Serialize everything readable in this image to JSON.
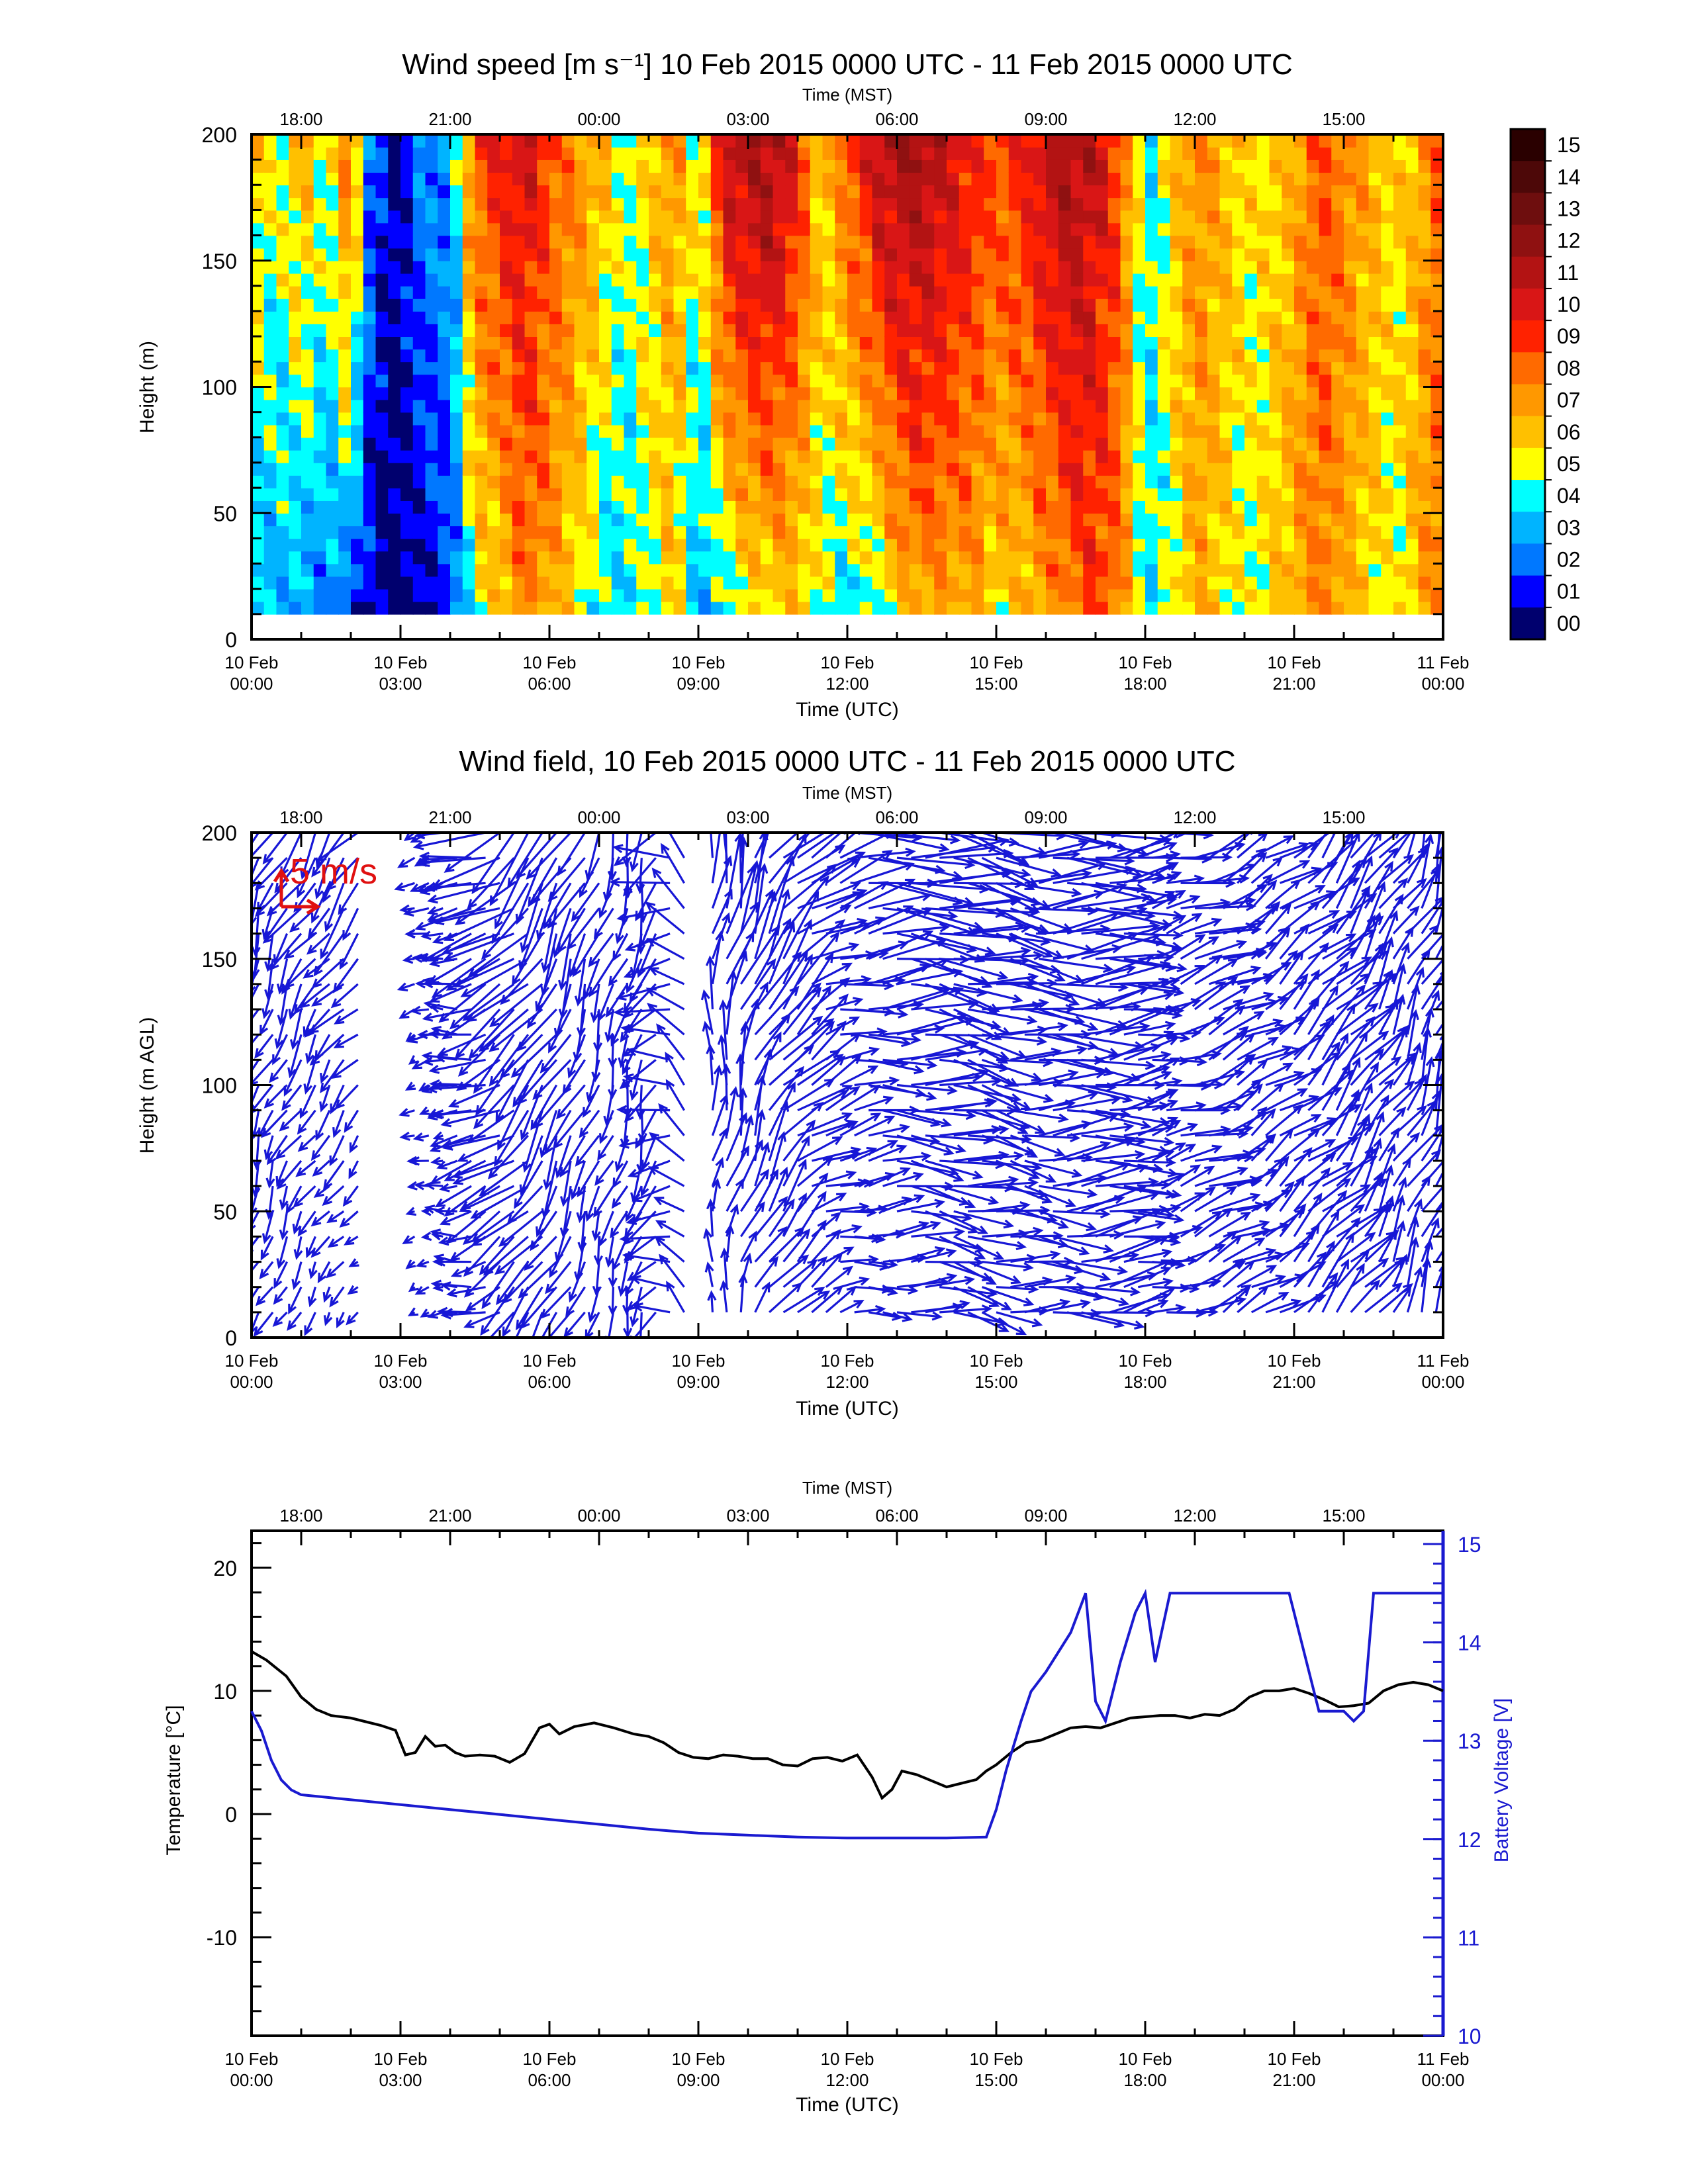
{
  "figure": {
    "colors": {
      "wind_arrows": "#1717d6",
      "scale_arrow": "#e01010",
      "temperature_line": "#000000",
      "voltage_line": "#1a1ad0",
      "voltage_axis": "#1a1ad0"
    }
  },
  "chart_data": [
    {
      "type": "heatmap",
      "title": "Wind speed [m s⁻¹] 10 Feb 2015 0000 UTC - 11 Feb 2015 0000 UTC",
      "xlabel": "Time (UTC)",
      "x2label": "Time (MST)",
      "ylabel": "Height (m)",
      "xlim_hours_utc": [
        0,
        24
      ],
      "ylim": [
        0,
        200
      ],
      "yticks": [
        "0",
        "50",
        "100",
        "150",
        "200"
      ],
      "xticks_utc": [
        {
          "day": "10 Feb",
          "time": "00:00"
        },
        {
          "day": "10 Feb",
          "time": "03:00"
        },
        {
          "day": "10 Feb",
          "time": "06:00"
        },
        {
          "day": "10 Feb",
          "time": "09:00"
        },
        {
          "day": "10 Feb",
          "time": "12:00"
        },
        {
          "day": "10 Feb",
          "time": "15:00"
        },
        {
          "day": "10 Feb",
          "time": "18:00"
        },
        {
          "day": "10 Feb",
          "time": "21:00"
        },
        {
          "day": "11 Feb",
          "time": "00:00"
        }
      ],
      "xticks_mst": [
        "18:00",
        "21:00",
        "00:00",
        "03:00",
        "06:00",
        "09:00",
        "12:00",
        "15:00"
      ],
      "colorbar": {
        "labels": [
          "15",
          "14",
          "13",
          "12",
          "11",
          "10",
          "09",
          "08",
          "07",
          "06",
          "05",
          "04",
          "03",
          "02",
          "01",
          "00"
        ],
        "colors": [
          "#2a0000",
          "#4d0808",
          "#6e0e0e",
          "#8f1111",
          "#b31313",
          "#d91616",
          "#ff2200",
          "#ff6a00",
          "#ff9800",
          "#ffc000",
          "#ffff00",
          "#00ffff",
          "#00b4ff",
          "#0078ff",
          "#0000ff",
          "#00006e"
        ]
      },
      "data_height_range_m": [
        10,
        200
      ],
      "wind_speed_profile": {
        "hours_utc": [
          0,
          0.5,
          1.0,
          1.5,
          2.0,
          2.3,
          2.7,
          3.0,
          3.5,
          4.0,
          4.5,
          5.0,
          5.5,
          6.0,
          6.5,
          7.0,
          7.5,
          8.0,
          8.5,
          9.0,
          9.5,
          10.0,
          10.5,
          11.0,
          11.5,
          12.0,
          12.5,
          13.0,
          13.5,
          14.0,
          14.5,
          15.0,
          15.5,
          16.0,
          16.5,
          17.0,
          17.5,
          18.0,
          18.5,
          19.0,
          19.5,
          20.0,
          20.5,
          21.0,
          21.5,
          22.0,
          22.5,
          23.0,
          23.5,
          24.0
        ],
        "speed_low_ms": [
          3,
          3.5,
          3,
          2.5,
          2,
          1,
          0.5,
          0.5,
          1,
          1.5,
          5,
          6,
          8,
          7,
          6,
          4,
          4,
          5,
          6,
          3,
          4,
          5,
          6,
          6,
          5,
          4,
          4,
          6,
          7,
          7,
          7,
          6,
          6,
          7,
          8,
          9,
          8,
          4,
          5,
          7,
          6,
          5,
          6,
          7,
          8,
          7,
          6,
          5,
          7,
          8
        ],
        "speed_high_ms": [
          7,
          5,
          7,
          5,
          9,
          3,
          1,
          1,
          3,
          3,
          9,
          10,
          11,
          9,
          8,
          7,
          5,
          6,
          8,
          5,
          11,
          12,
          12,
          10,
          6,
          9,
          11,
          12,
          12,
          11,
          10,
          9,
          10,
          11,
          12,
          11,
          9,
          4,
          6,
          8,
          7,
          6,
          6,
          7,
          9,
          8,
          7,
          6,
          7,
          9
        ]
      }
    },
    {
      "type": "quiver",
      "title": "Wind field, 10 Feb 2015 0000 UTC - 11 Feb 2015 0000 UTC",
      "xlabel": "Time (UTC)",
      "x2label": "Time (MST)",
      "ylabel": "Height (m AGL)",
      "xlim_hours_utc": [
        0,
        24
      ],
      "ylim": [
        0,
        200
      ],
      "yticks": [
        "0",
        "50",
        "100",
        "150",
        "200"
      ],
      "scale_label": "5 m/s",
      "scale_ms": 5,
      "xticks_utc": [
        {
          "day": "10 Feb",
          "time": "00:00"
        },
        {
          "day": "10 Feb",
          "time": "03:00"
        },
        {
          "day": "10 Feb",
          "time": "06:00"
        },
        {
          "day": "10 Feb",
          "time": "09:00"
        },
        {
          "day": "10 Feb",
          "time": "12:00"
        },
        {
          "day": "10 Feb",
          "time": "15:00"
        },
        {
          "day": "10 Feb",
          "time": "18:00"
        },
        {
          "day": "10 Feb",
          "time": "21:00"
        },
        {
          "day": "11 Feb",
          "time": "00:00"
        }
      ],
      "xticks_mst": [
        "18:00",
        "21:00",
        "00:00",
        "03:00",
        "06:00",
        "09:00",
        "12:00",
        "15:00"
      ],
      "wind_direction_profile": {
        "hours_utc": [
          0,
          1,
          2,
          3,
          4,
          5,
          6,
          7,
          8,
          9,
          10,
          11,
          12,
          13,
          14,
          15,
          16,
          17,
          18,
          19,
          20,
          21,
          22,
          23,
          24
        ],
        "direction_from_deg": [
          20,
          30,
          40,
          60,
          90,
          60,
          30,
          20,
          15,
          180,
          200,
          230,
          260,
          270,
          280,
          280,
          270,
          265,
          260,
          250,
          240,
          230,
          220,
          210,
          200
        ]
      }
    },
    {
      "type": "line",
      "title": "",
      "xlabel": "Time (UTC)",
      "x2label": "Time (MST)",
      "ylabel": "Temperature [°C]",
      "y2label": "Battery Voltage [V]",
      "xlim_hours_utc": [
        0,
        24
      ],
      "ylim": [
        -18,
        23
      ],
      "y2lim": [
        10,
        15
      ],
      "yticks": [
        "-10",
        "0",
        "10",
        "20"
      ],
      "y2ticks": [
        "10",
        "11",
        "12",
        "13",
        "14",
        "15"
      ],
      "xticks_utc": [
        {
          "day": "10 Feb",
          "time": "00:00"
        },
        {
          "day": "10 Feb",
          "time": "03:00"
        },
        {
          "day": "10 Feb",
          "time": "06:00"
        },
        {
          "day": "10 Feb",
          "time": "09:00"
        },
        {
          "day": "10 Feb",
          "time": "12:00"
        },
        {
          "day": "10 Feb",
          "time": "15:00"
        },
        {
          "day": "10 Feb",
          "time": "18:00"
        },
        {
          "day": "10 Feb",
          "time": "21:00"
        },
        {
          "day": "11 Feb",
          "time": "00:00"
        }
      ],
      "xticks_mst": [
        "18:00",
        "21:00",
        "00:00",
        "03:00",
        "06:00",
        "09:00",
        "12:00",
        "15:00"
      ],
      "series": [
        {
          "axis": "left",
          "x_hours_utc": [
            0,
            0.3,
            0.7,
            1.0,
            1.3,
            1.6,
            2.0,
            2.3,
            2.6,
            2.9,
            3.1,
            3.3,
            3.5,
            3.7,
            3.9,
            4.1,
            4.3,
            4.6,
            4.9,
            5.2,
            5.5,
            5.8,
            6.0,
            6.2,
            6.5,
            6.9,
            7.3,
            7.7,
            8.0,
            8.3,
            8.6,
            8.9,
            9.2,
            9.5,
            9.8,
            10.1,
            10.4,
            10.7,
            11.0,
            11.3,
            11.6,
            11.9,
            12.2,
            12.5,
            12.7,
            12.9,
            13.1,
            13.4,
            13.7,
            14.0,
            14.3,
            14.6,
            14.8,
            15.0,
            15.3,
            15.6,
            15.9,
            16.2,
            16.5,
            16.8,
            17.1,
            17.4,
            17.7,
            18.0,
            18.3,
            18.6,
            18.9,
            19.2,
            19.5,
            19.8,
            20.1,
            20.4,
            20.7,
            21.0,
            21.3,
            21.6,
            21.9,
            22.2,
            22.5,
            22.8,
            23.1,
            23.4,
            23.7,
            24.0
          ],
          "values": [
            13.2,
            12.5,
            11.2,
            9.5,
            8.5,
            8.0,
            7.8,
            7.5,
            7.2,
            6.8,
            4.8,
            5.0,
            6.3,
            5.5,
            5.6,
            5.0,
            4.7,
            4.8,
            4.7,
            4.2,
            4.9,
            7.0,
            7.3,
            6.5,
            7.1,
            7.4,
            7.0,
            6.5,
            6.3,
            5.8,
            5.0,
            4.6,
            4.5,
            4.8,
            4.7,
            4.5,
            4.5,
            4.0,
            3.9,
            4.5,
            4.6,
            4.3,
            4.8,
            3.0,
            1.3,
            2.0,
            3.5,
            3.2,
            2.7,
            2.2,
            2.5,
            2.8,
            3.5,
            4.0,
            5.0,
            5.8,
            6.0,
            6.5,
            7.0,
            7.1,
            7.0,
            7.4,
            7.8,
            7.9,
            8.0,
            8.0,
            7.8,
            8.1,
            8.0,
            8.5,
            9.5,
            10.0,
            10.0,
            10.2,
            9.8,
            9.3,
            8.7,
            8.8,
            9.0,
            10.0,
            10.5,
            10.7,
            10.5,
            10.0
          ]
        },
        {
          "axis": "right",
          "x_hours_utc": [
            0,
            0.2,
            0.4,
            0.6,
            0.8,
            1.0,
            2.0,
            4.0,
            6.0,
            8.0,
            9.0,
            10.0,
            11.0,
            12.0,
            13.0,
            14.0,
            14.8,
            15.0,
            15.2,
            15.5,
            15.7,
            16.0,
            16.5,
            16.8,
            17.0,
            17.2,
            17.5,
            17.8,
            18.0,
            18.2,
            18.5,
            18.7,
            19.0,
            19.2,
            19.5,
            20.0,
            20.3,
            20.6,
            20.9,
            21.5,
            22.0,
            22.2,
            22.4,
            22.6,
            23.0,
            24.0
          ],
          "values": [
            13.3,
            13.1,
            12.8,
            12.6,
            12.5,
            12.45,
            12.4,
            12.3,
            12.2,
            12.1,
            12.06,
            12.04,
            12.02,
            12.01,
            12.01,
            12.01,
            12.02,
            12.3,
            12.7,
            13.2,
            13.5,
            13.7,
            14.1,
            14.5,
            13.4,
            13.2,
            13.8,
            14.3,
            14.5,
            13.8,
            14.5,
            14.5,
            14.5,
            14.5,
            14.5,
            14.5,
            14.5,
            14.5,
            14.5,
            13.3,
            13.3,
            13.2,
            13.3,
            14.5,
            14.5,
            14.5
          ]
        }
      ]
    }
  ]
}
